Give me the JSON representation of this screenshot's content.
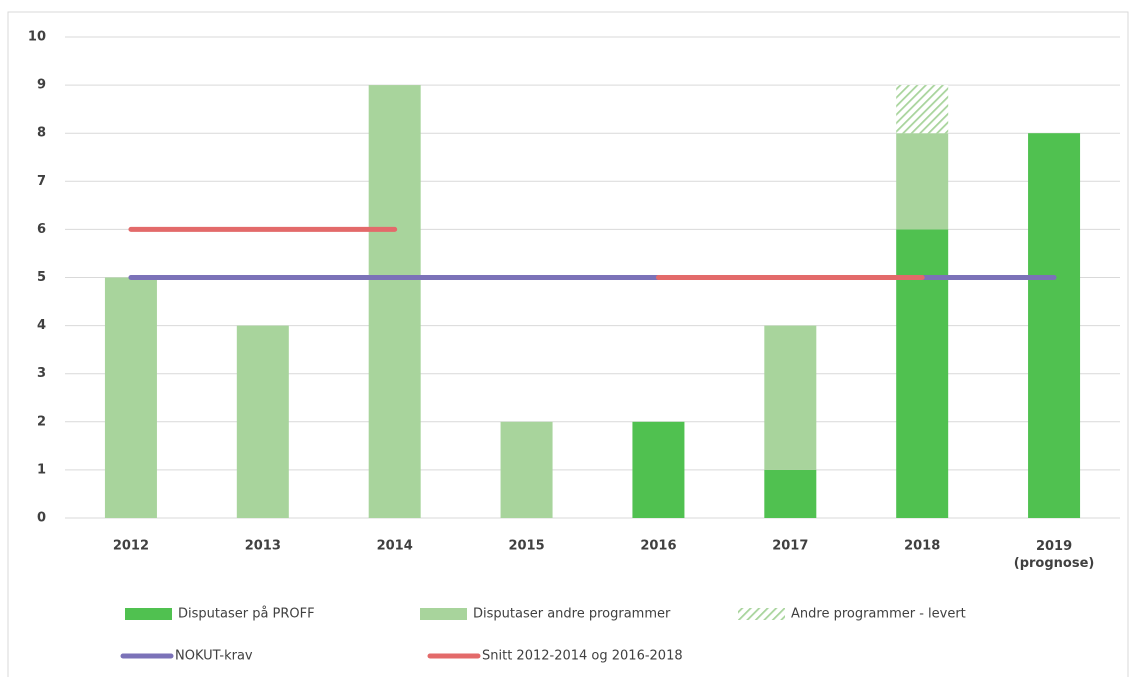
{
  "chart_data": {
    "type": "bar",
    "stacked": true,
    "categories": [
      "2012",
      "2013",
      "2014",
      "2015",
      "2016",
      "2017",
      "2018",
      "2019\n(prognose)"
    ],
    "series": [
      {
        "name": "Disputaser på PROFF",
        "type": "bar",
        "color": "#50c150",
        "values": [
          0,
          0,
          0,
          0,
          2,
          1,
          6,
          8
        ]
      },
      {
        "name": "Disputaser andre programmer",
        "type": "bar",
        "color": "#a8d49c",
        "values": [
          5,
          4,
          9,
          2,
          0,
          3,
          2,
          0
        ]
      },
      {
        "name": "Andre programmer - levert",
        "type": "bar",
        "color": "#a8d49c",
        "pattern": "hatch",
        "values": [
          0,
          0,
          0,
          0,
          0,
          0,
          1,
          0
        ]
      },
      {
        "name": "NOKUT-krav",
        "type": "line",
        "color": "#7b72b8",
        "values": [
          5,
          5,
          5,
          5,
          5,
          5,
          5,
          5
        ]
      },
      {
        "name": "Snitt 2012-2014 og 2016-2018",
        "type": "line",
        "color": "#e36a6a",
        "values": [
          6,
          6,
          6,
          null,
          5,
          5,
          5,
          null
        ]
      }
    ],
    "ylim": [
      0,
      10
    ],
    "yticks": [
      0,
      1,
      2,
      3,
      4,
      5,
      6,
      7,
      8,
      9,
      10
    ],
    "grid": true,
    "legend": "bottom"
  }
}
